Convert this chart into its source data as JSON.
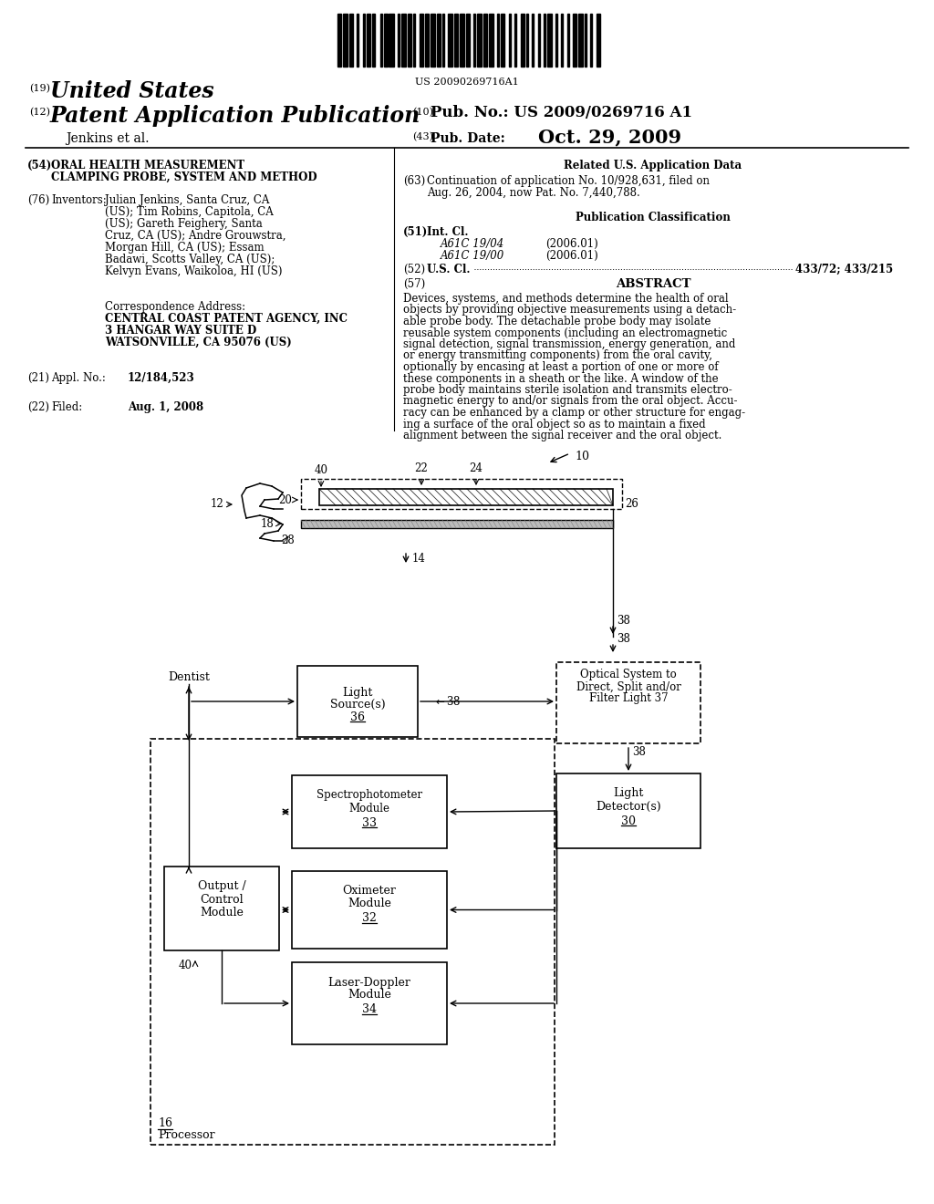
{
  "background_color": "#ffffff",
  "barcode_text": "US 20090269716A1",
  "header": {
    "country_num": "(19)",
    "country": "United States",
    "type_num": "(12)",
    "type": "Patent Application Publication",
    "pub_num_label_num": "(10)",
    "pub_num_label": "Pub. No.:",
    "pub_num": "US 2009/0269716 A1",
    "inventor": "Jenkins et al.",
    "pub_date_label_num": "(43)",
    "pub_date_label": "Pub. Date:",
    "pub_date": "Oct. 29, 2009"
  },
  "left_col": {
    "title_num": "(54)",
    "title_line1": "ORAL HEALTH MEASUREMENT",
    "title_line2": "CLAMPING PROBE, SYSTEM AND METHOD",
    "inventors_num": "(76)",
    "inventors_label": "Inventors:",
    "inventors_lines": [
      "Julian Jenkins, Santa Cruz, CA",
      "(US); Tim Robins, Capitola, CA",
      "(US); Gareth Feighery, Santa",
      "Cruz, CA (US); Andre Grouwstra,",
      "Morgan Hill, CA (US); Essam",
      "Badawi, Scotts Valley, CA (US);",
      "Kelvyn Evans, Waikoloa, HI (US)"
    ],
    "corr_label": "Correspondence Address:",
    "corr_line1": "CENTRAL COAST PATENT AGENCY, INC",
    "corr_line2": "3 HANGAR WAY SUITE D",
    "corr_line3": "WATSONVILLE, CA 95076 (US)",
    "appl_num": "(21)",
    "appl_label": "Appl. No.:",
    "appl_value": "12/184,523",
    "filed_num": "(22)",
    "filed_label": "Filed:",
    "filed_value": "Aug. 1, 2008"
  },
  "right_col": {
    "related_header": "Related U.S. Application Data",
    "related_num": "(63)",
    "related_lines": [
      "Continuation of application No. 10/928,631, filed on",
      "Aug. 26, 2004, now Pat. No. 7,440,788."
    ],
    "pub_class_header": "Publication Classification",
    "int_cl_num": "(51)",
    "int_cl_label": "Int. Cl.",
    "int_cl_1": "A61C 19/04",
    "int_cl_1_date": "(2006.01)",
    "int_cl_2": "A61C 19/00",
    "int_cl_2_date": "(2006.01)",
    "us_cl_num": "(52)",
    "us_cl_label": "U.S. Cl.",
    "us_cl_value": "433/72; 433/215",
    "abstract_num": "(57)",
    "abstract_header": "ABSTRACT",
    "abstract_lines": [
      "Devices, systems, and methods determine the health of oral",
      "objects by providing objective measurements using a detach-",
      "able probe body. The detachable probe body may isolate",
      "reusable system components (including an electromagnetic",
      "signal detection, signal transmission, energy generation, and",
      "or energy transmitting components) from the oral cavity,",
      "optionally by encasing at least a portion of one or more of",
      "these components in a sheath or the like. A window of the",
      "probe body maintains sterile isolation and transmits electro-",
      "magnetic energy to and/or signals from the oral object. Accu-",
      "racy can be enhanced by a clamp or other structure for engag-",
      "ing a surface of the oral object so as to maintain a fixed",
      "alignment between the signal receiver and the oral object."
    ]
  }
}
